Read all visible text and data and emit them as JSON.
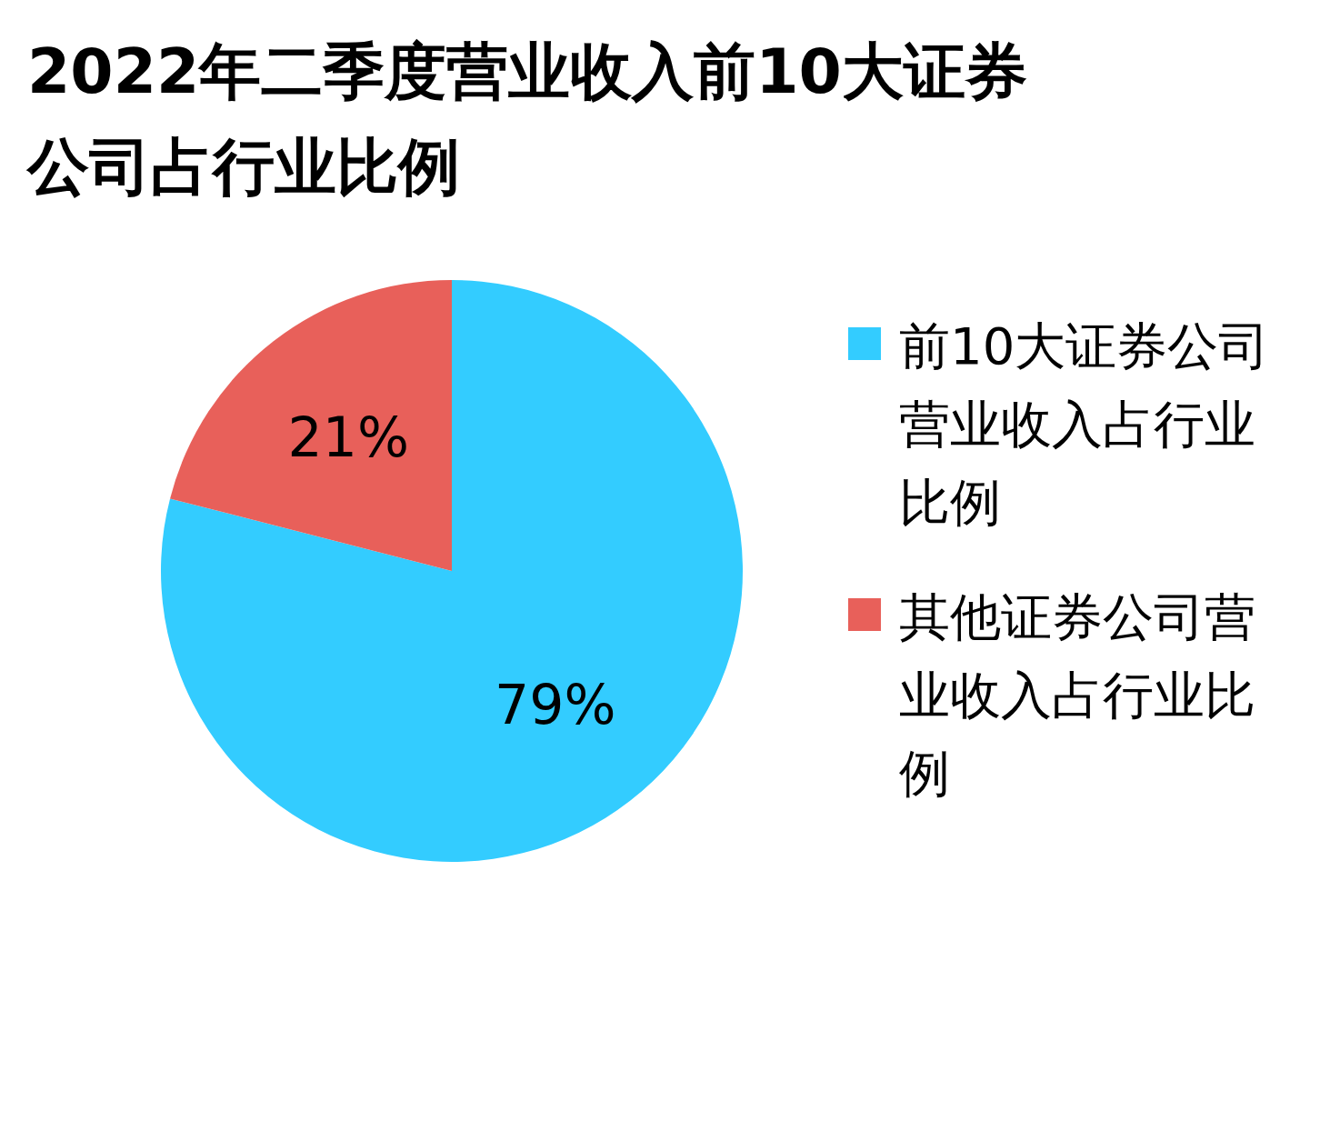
{
  "chart_data": {
    "type": "pie",
    "title": "2022年二季度营业收入前10大证券公司占行业比例",
    "categories": [
      "前10大证券公司营业收入占行业比例",
      "其他证券公司营业收入占行业比例"
    ],
    "values": [
      79,
      21
    ],
    "colors": [
      "#33ccff",
      "#e8605a"
    ],
    "value_labels": [
      "79%",
      "21%"
    ],
    "legend": "right"
  }
}
